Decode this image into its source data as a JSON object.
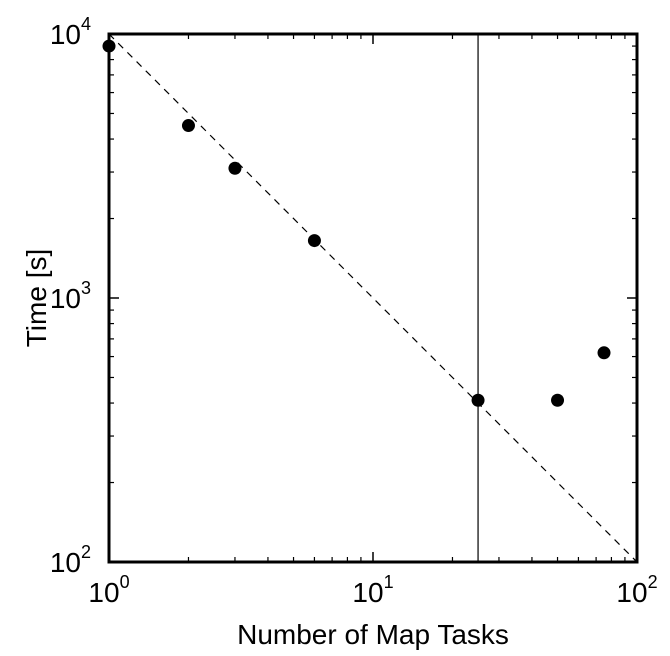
{
  "chart_data": {
    "type": "scatter",
    "title": "",
    "xlabel": "Number of Map Tasks",
    "ylabel": "Time [s]",
    "xscale": "log",
    "yscale": "log",
    "xlim": [
      1,
      100
    ],
    "ylim": [
      100,
      10000
    ],
    "x_ticks": [
      {
        "base": "10",
        "exp": "0",
        "value": 1
      },
      {
        "base": "10",
        "exp": "1",
        "value": 10
      },
      {
        "base": "10",
        "exp": "2",
        "value": 100
      }
    ],
    "y_ticks": [
      {
        "base": "10",
        "exp": "2",
        "value": 100
      },
      {
        "base": "10",
        "exp": "3",
        "value": 1000
      },
      {
        "base": "10",
        "exp": "4",
        "value": 10000
      }
    ],
    "grid": false,
    "legend": "none",
    "points": [
      {
        "x": 1,
        "y": 9000
      },
      {
        "x": 2,
        "y": 4500
      },
      {
        "x": 3,
        "y": 3100
      },
      {
        "x": 6,
        "y": 1650
      },
      {
        "x": 25,
        "y": 410
      },
      {
        "x": 50,
        "y": 410
      },
      {
        "x": 75,
        "y": 620
      }
    ],
    "reference_line": {
      "style": "dashed",
      "x": [
        1,
        100
      ],
      "y": [
        10000,
        100
      ]
    },
    "vertical_line": {
      "style": "solid",
      "x": 25
    },
    "colors": {
      "marker": "#000000",
      "lines": "#000000",
      "background": "#ffffff"
    }
  }
}
